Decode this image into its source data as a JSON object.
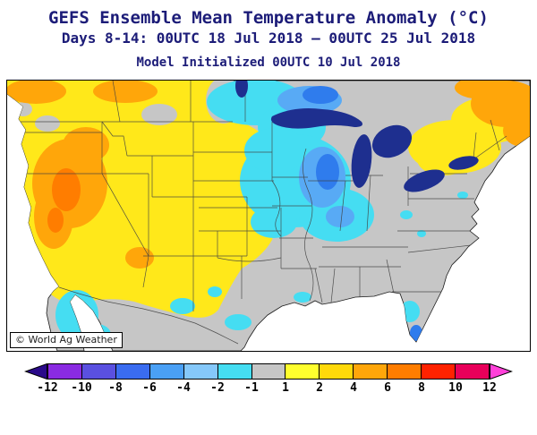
{
  "header": {
    "title": "GEFS Ensemble Mean Temperature Anomaly (°C)",
    "subtitle": "Days 8-14: 00UTC 18 Jul 2018 — 00UTC 25 Jul 2018",
    "init_line": "Model Initialized 00UTC 10 Jul 2018"
  },
  "map": {
    "watermark": "© World Ag Weather"
  },
  "colorbar": {
    "ticks": [
      "-12",
      "-10",
      "-8",
      "-6",
      "-4",
      "-2",
      "-1",
      "1",
      "2",
      "4",
      "6",
      "8",
      "10",
      "12"
    ],
    "segments": [
      {
        "color": "#2a0a8a"
      },
      {
        "color": "#8a2be2"
      },
      {
        "color": "#5a50e0"
      },
      {
        "color": "#3a6cf0"
      },
      {
        "color": "#4aa0f5"
      },
      {
        "color": "#85c8fa"
      },
      {
        "color": "#45ddf2"
      },
      {
        "color": "#c6c6c6"
      },
      {
        "color": "#ffff2e"
      },
      {
        "color": "#ffd90a"
      },
      {
        "color": "#ffa60a"
      },
      {
        "color": "#ff7d00"
      },
      {
        "color": "#ff2200"
      },
      {
        "color": "#e8005a"
      },
      {
        "color": "#ff40d9"
      }
    ]
  },
  "palette": {
    "title": "#1c1c78",
    "ocean": "#ffffff",
    "neutral": "#c6c6c6",
    "warm1": "#ffe81a",
    "warm3": "#ffa60a",
    "warm4": "#ff7d00",
    "cool1": "#45ddf2",
    "cool2": "#58aaf5",
    "cool3": "#2f7ced",
    "lake": "#1e2f8f",
    "coast": "#1a1a1a",
    "border": "#404040"
  }
}
